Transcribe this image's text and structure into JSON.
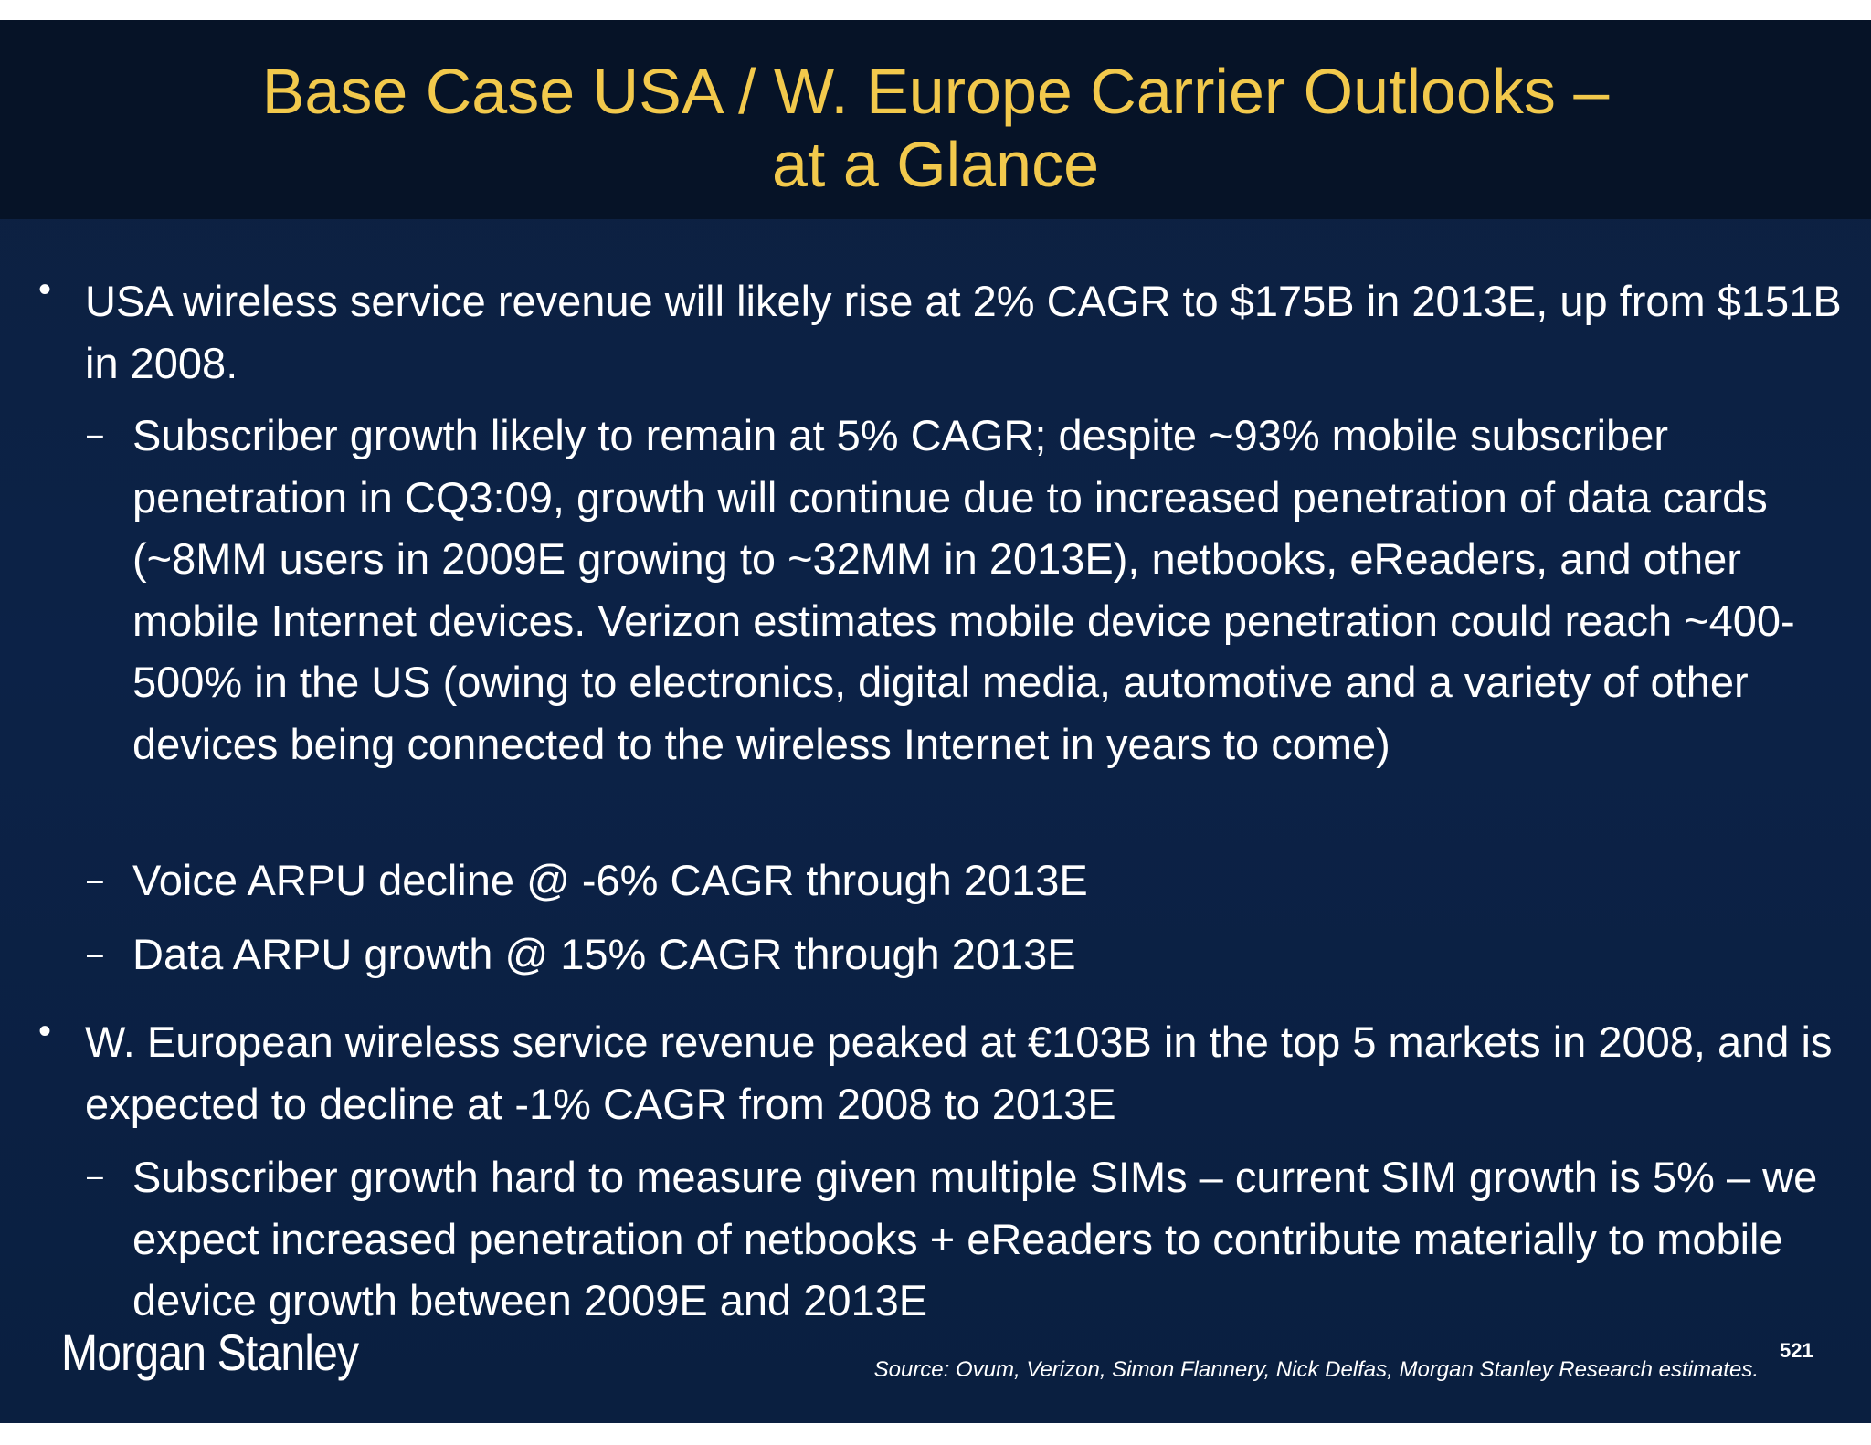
{
  "slide": {
    "title_line1": "Base Case USA / W. Europe Carrier Outlooks –",
    "title_line2": "at a Glance",
    "bullet_char": "•",
    "sub_char": "–",
    "bullets": [
      {
        "text": "USA wireless service revenue will likely rise at 2% CAGR to $175B in 2013E, up from $151B in 2008.",
        "subs": [
          "Subscriber growth likely to remain at 5% CAGR; despite ~93% mobile subscriber penetration in CQ3:09, growth will continue due to increased penetration of data cards (~8MM users in 2009E growing to ~32MM in 2013E), netbooks, eReaders, and other mobile Internet devices. Verizon estimates mobile device penetration could reach ~400-500% in the US (owing to electronics, digital media, automotive and a variety of other devices being connected to the wireless Internet in years to come)",
          "Voice ARPU decline @ -6% CAGR through 2013E",
          "Data ARPU growth @ 15% CAGR through 2013E"
        ]
      },
      {
        "text": "W. European wireless service revenue peaked at €103B in the top 5 markets in 2008, and is expected to decline at  -1% CAGR from 2008 to 2013E",
        "subs": [
          "Subscriber growth hard to measure given multiple SIMs – current SIM growth is 5% – we expect increased penetration of netbooks + eReaders to contribute materially to mobile device growth between 2009E and 2013E"
        ]
      }
    ],
    "logo": "Morgan Stanley",
    "source": "Source: Ovum, Verizon, Simon Flannery, Nick Delfas, Morgan Stanley Research estimates.",
    "page_number": "521",
    "colors": {
      "title": "#f2c94c",
      "title_band": "#061327",
      "background": "#0c2247",
      "text": "#ffffff"
    }
  }
}
